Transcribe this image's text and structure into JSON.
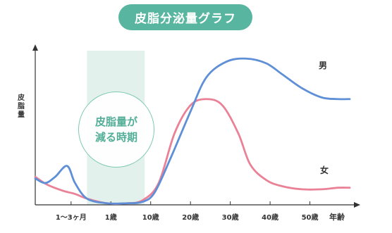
{
  "title": "皮脂分泌量グラフ",
  "annotation": {
    "line1": "皮脂量が",
    "line2": "減る時期"
  },
  "colors": {
    "accent": "#58b6a0",
    "shade": "#e3f1ec",
    "male": "#5f8fd6",
    "female": "#ea8196",
    "axis": "#333333"
  },
  "chart_data": {
    "type": "line",
    "title": "皮脂分泌量グラフ",
    "xlabel": "年齢",
    "ylabel": "皮脂量",
    "x_ticks": [
      "1〜3ヶ月",
      "1歳",
      "10歳",
      "20歳",
      "30歳",
      "40歳",
      "50歳"
    ],
    "x_tick_positions": [
      1,
      2,
      3,
      4,
      5,
      6,
      7
    ],
    "xlim": [
      0.1,
      8.0
    ],
    "ylim": [
      0,
      100
    ],
    "shaded_region": {
      "from": 1.4,
      "to": 2.85,
      "label": "皮脂量が減る時期"
    },
    "series": [
      {
        "name": "男",
        "x": [
          0.1,
          0.35,
          0.6,
          0.9,
          1.1,
          1.4,
          1.9,
          2.4,
          2.8,
          3.1,
          3.5,
          4.0,
          4.4,
          4.9,
          5.4,
          5.9,
          6.3,
          6.8,
          7.3,
          7.7,
          8.0
        ],
        "y": [
          17,
          14,
          18,
          25,
          14,
          4,
          1,
          1,
          2,
          8,
          30,
          60,
          82,
          92,
          94,
          91,
          84,
          75,
          69,
          68,
          68
        ]
      },
      {
        "name": "女",
        "x": [
          0.1,
          0.4,
          0.8,
          1.1,
          1.4,
          1.9,
          2.4,
          2.8,
          3.2,
          3.6,
          4.0,
          4.4,
          4.8,
          5.2,
          5.5,
          5.9,
          6.3,
          6.8,
          7.3,
          7.7,
          8.0
        ],
        "y": [
          18,
          13,
          9,
          7,
          4,
          1,
          1,
          3,
          14,
          46,
          64,
          68,
          64,
          46,
          26,
          16,
          12,
          10,
          10,
          11,
          11
        ]
      }
    ],
    "grid": false,
    "legend": "inline"
  }
}
